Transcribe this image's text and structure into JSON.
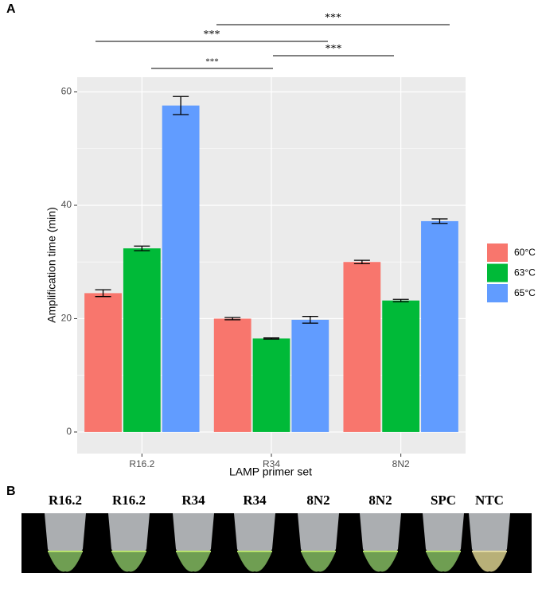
{
  "panel_a_label": "A",
  "chart_data": {
    "type": "bar",
    "categories": [
      "R16.2",
      "R34",
      "8N2"
    ],
    "series": [
      {
        "name": "60°C",
        "color": "#f8766d",
        "values": [
          24.5,
          20.0,
          30.0
        ],
        "errors": [
          0.6,
          0.2,
          0.3
        ]
      },
      {
        "name": "63°C",
        "color": "#00ba38",
        "values": [
          32.4,
          16.5,
          23.2
        ],
        "errors": [
          0.4,
          0.1,
          0.2
        ]
      },
      {
        "name": "65°C",
        "color": "#619cff",
        "values": [
          57.6,
          19.8,
          37.2
        ],
        "errors": [
          1.6,
          0.6,
          0.4
        ]
      }
    ],
    "x_label": "LAMP primer set",
    "y_label": "Amplification time (min)",
    "ylim": [
      -3.8,
      62.6
    ],
    "yticks": [
      0,
      20,
      40,
      60
    ],
    "minor_yticks": [
      10,
      30,
      50
    ],
    "grid": true,
    "legend": "right",
    "annotations": [
      "***",
      "***",
      "***",
      "***"
    ]
  },
  "panel_b": {
    "label": "B",
    "tubes": [
      "R16.2",
      "R16.2",
      "R34",
      "R34",
      "8N2",
      "8N2",
      "SPC",
      "NTC"
    ]
  }
}
